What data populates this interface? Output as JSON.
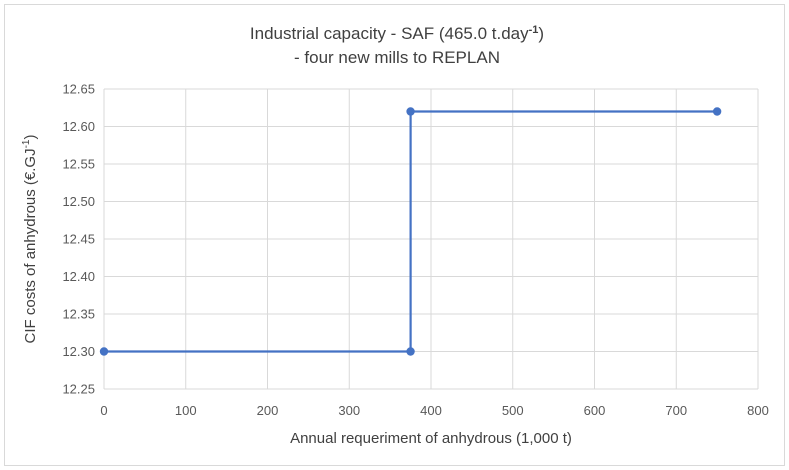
{
  "chart_data": {
    "type": "line",
    "title_line1_main": "Industrial capacity - SAF (465.0 t.day",
    "title_line1_sup": "-1",
    "title_line1_end": ")",
    "title_line2": "- four new mills to REPLAN",
    "xlabel": "Annual requeriment of anhydrous (1,000 t)",
    "ylabel_main": "CIF costs of anhydrous (€.GJ",
    "ylabel_sup": "-1",
    "ylabel_end": ")",
    "xlim": [
      0,
      800
    ],
    "ylim": [
      12.25,
      12.65
    ],
    "x_ticks": [
      "0",
      "100",
      "200",
      "300",
      "400",
      "500",
      "600",
      "700",
      "800"
    ],
    "y_ticks": [
      "12.25",
      "12.30",
      "12.35",
      "12.40",
      "12.45",
      "12.50",
      "12.55",
      "12.60",
      "12.65"
    ],
    "grid": true,
    "legend": "none",
    "series": [
      {
        "color": "#4472c4",
        "points": [
          {
            "x": 0,
            "y": 12.3
          },
          {
            "x": 375,
            "y": 12.3
          },
          {
            "x": 375,
            "y": 12.62
          },
          {
            "x": 750,
            "y": 12.62
          }
        ]
      }
    ]
  }
}
